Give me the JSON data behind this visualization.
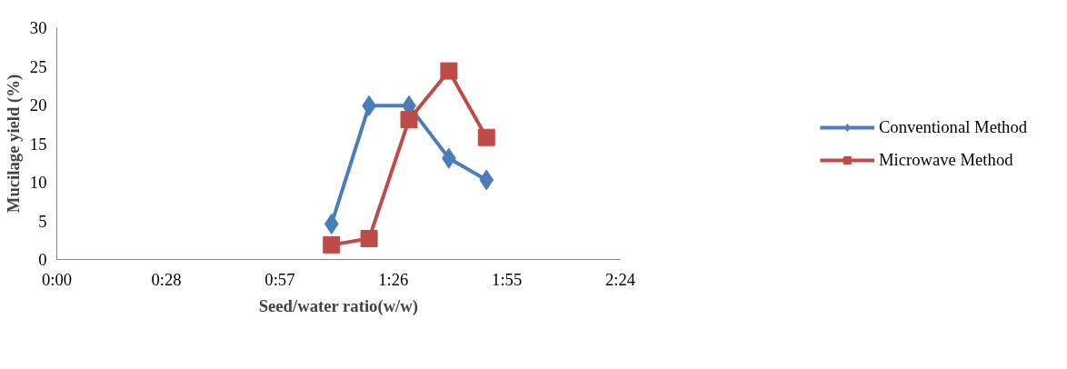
{
  "chart_data": {
    "type": "line",
    "xlabel": "Seed/water ratio(w/w)",
    "ylabel": "Mucilage yield (%)",
    "x": [
      1.17,
      1.33,
      1.5,
      1.67,
      1.83
    ],
    "series": [
      {
        "name": "Conventional Method",
        "color": "#4a7ebb",
        "marker": "diamond",
        "values": [
          4.6,
          19.9,
          19.9,
          13.1,
          10.3
        ]
      },
      {
        "name": "Microwave Method",
        "color": "#be4b48",
        "marker": "square",
        "values": [
          1.9,
          2.7,
          18.1,
          24.4,
          15.8
        ]
      }
    ],
    "xlim": [
      0,
      2.4
    ],
    "xticks": [
      {
        "value": 0,
        "label": "0:00"
      },
      {
        "value": 0.4667,
        "label": "0:28"
      },
      {
        "value": 0.95,
        "label": "0:57"
      },
      {
        "value": 1.4333,
        "label": "1:26"
      },
      {
        "value": 1.9167,
        "label": "1:55"
      },
      {
        "value": 2.4,
        "label": "2:24"
      }
    ],
    "ylim": [
      0,
      30
    ],
    "yticks": [
      0,
      5,
      10,
      15,
      20,
      25,
      30
    ],
    "grid": false,
    "legend": "right",
    "line_style": "solid"
  }
}
